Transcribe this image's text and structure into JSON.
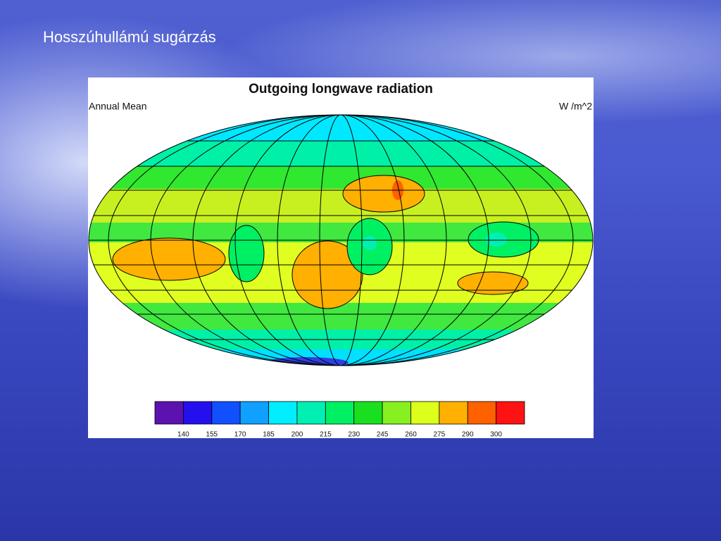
{
  "slide": {
    "title": "Hosszúhullámú sugárzás"
  },
  "figure": {
    "title": "Outgoing longwave radiation",
    "subtitle": "Annual Mean",
    "units": "W /m^2",
    "colorbar": {
      "colors": [
        "#5c12ae",
        "#2410ee",
        "#1050ff",
        "#10a0ff",
        "#00eeff",
        "#00f0b4",
        "#00f064",
        "#18e020",
        "#86f020",
        "#dcff1c",
        "#ffb000",
        "#ff6000",
        "#ff1212"
      ],
      "labels": [
        140,
        155,
        170,
        185,
        200,
        215,
        230,
        245,
        260,
        275,
        290,
        300
      ]
    }
  }
}
